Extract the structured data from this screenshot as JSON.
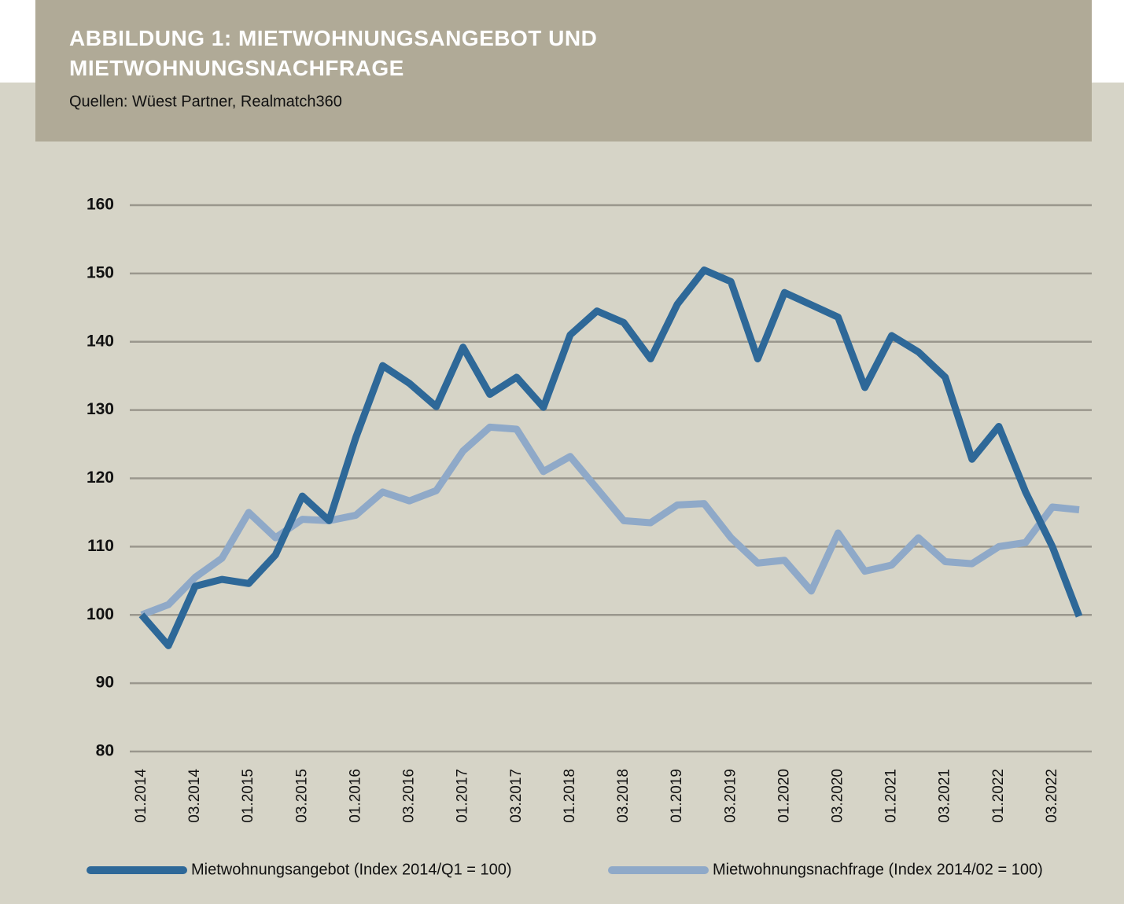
{
  "chart_data": {
    "type": "line",
    "title": "ABBILDUNG 1: MIETWOHNUNGSANGEBOT UND MIETWOHNUNGSNACHFRAGE",
    "subtitle": "Quellen: Wüest Partner, Realmatch360",
    "categories": [
      "01.2014",
      null,
      "03.2014",
      null,
      "01.2015",
      null,
      "03.2015",
      null,
      "01.2016",
      null,
      "03.2016",
      null,
      "01.2017",
      null,
      "03.2017",
      null,
      "01.2018",
      null,
      "03.2018",
      null,
      "01.2019",
      null,
      "03.2019",
      null,
      "01.2020",
      null,
      "03.2020",
      null,
      "01.2021",
      null,
      "03.2021",
      null,
      "01.2022",
      null,
      "03.2022",
      null
    ],
    "series": [
      {
        "name": "Mietwohnungsangebot (Index 2014/Q1 = 100)",
        "color": "#2e6898",
        "values": [
          100,
          95.5,
          104.2,
          105.2,
          104.6,
          108.8,
          117.4,
          113.8,
          126,
          136.5,
          133.9,
          130.5,
          139.2,
          132.3,
          134.8,
          130.4,
          141,
          144.5,
          142.8,
          137.5,
          145.5,
          150.5,
          148.8,
          137.5,
          147.2,
          145.4,
          143.6,
          133.3,
          140.9,
          138.5,
          134.8,
          122.8,
          127.6,
          118,
          110,
          99.8
        ]
      },
      {
        "name": "Mietwohnungsnachfrage (Index 2014/02 = 100)",
        "color": "#8fa9c8",
        "values": [
          100,
          101.5,
          105.5,
          108.3,
          115,
          111.3,
          114,
          113.8,
          114.6,
          118,
          116.7,
          118.2,
          124,
          127.5,
          127.2,
          121,
          123.2,
          118.5,
          113.8,
          113.5,
          116.1,
          116.3,
          111.3,
          107.6,
          108,
          103.5,
          112,
          106.4,
          107.3,
          111.3,
          107.8,
          107.5,
          110,
          110.6,
          115.8,
          115.4
        ]
      }
    ],
    "ylim": [
      80,
      160
    ],
    "yticks": [
      80,
      90,
      100,
      110,
      120,
      130,
      140,
      150,
      160
    ],
    "grid": true
  }
}
